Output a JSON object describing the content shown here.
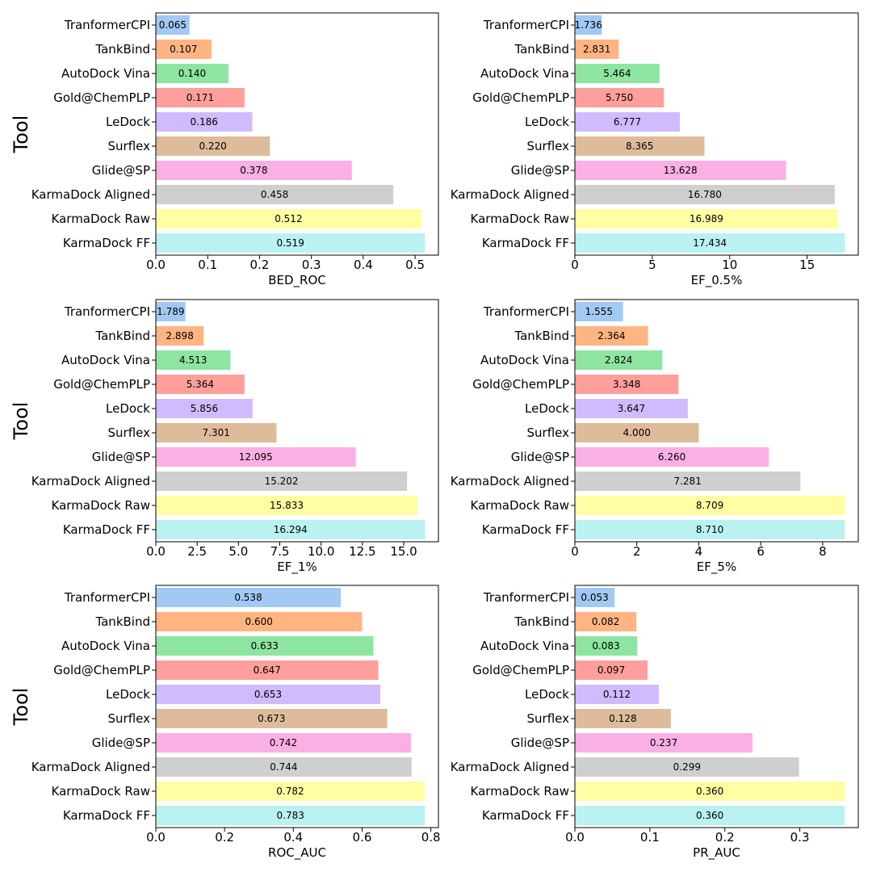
{
  "figure_ylabel": "Tool",
  "colors": [
    "#a1c9f4",
    "#ffb482",
    "#8de5a1",
    "#ff9f9b",
    "#d0bbff",
    "#debb9b",
    "#fab0e4",
    "#cfcfcf",
    "#fffea3",
    "#b9f2f0"
  ],
  "chart_data": [
    {
      "type": "bar",
      "orientation": "horizontal",
      "categories": [
        "TranformerCPI",
        "TankBind",
        "AutoDock Vina",
        "Gold@ChemPLP",
        "LeDock",
        "Surflex",
        "Glide@SP",
        "KarmaDock Aligned",
        "KarmaDock Raw",
        "KarmaDock FF"
      ],
      "values": [
        0.065,
        0.107,
        0.14,
        0.171,
        0.186,
        0.22,
        0.378,
        0.458,
        0.512,
        0.519
      ],
      "labels": [
        "0.065",
        "0.107",
        "0.140",
        "0.171",
        "0.186",
        "0.220",
        "0.378",
        "0.458",
        "0.512",
        "0.519"
      ],
      "xlabel": "BED_ROC",
      "ylabel": "Tool",
      "xlim": [
        0,
        0.545
      ],
      "xticks": [
        0.0,
        0.1,
        0.2,
        0.3,
        0.4,
        0.5
      ],
      "xtick_labels": [
        "0.0",
        "0.1",
        "0.2",
        "0.3",
        "0.4",
        "0.5"
      ]
    },
    {
      "type": "bar",
      "orientation": "horizontal",
      "categories": [
        "TranformerCPI",
        "TankBind",
        "AutoDock Vina",
        "Gold@ChemPLP",
        "LeDock",
        "Surflex",
        "Glide@SP",
        "KarmaDock Aligned",
        "KarmaDock Raw",
        "KarmaDock FF"
      ],
      "values": [
        1.736,
        2.831,
        5.464,
        5.75,
        6.777,
        8.365,
        13.628,
        16.78,
        16.989,
        17.434
      ],
      "labels": [
        "1.736",
        "2.831",
        "5.464",
        "5.750",
        "6.777",
        "8.365",
        "13.628",
        "16.780",
        "16.989",
        "17.434"
      ],
      "xlabel": "EF_0.5%",
      "ylabel": "",
      "xlim": [
        0,
        18.3
      ],
      "xticks": [
        0,
        5,
        10,
        15
      ],
      "xtick_labels": [
        "0",
        "5",
        "10",
        "15"
      ]
    },
    {
      "type": "bar",
      "orientation": "horizontal",
      "categories": [
        "TranformerCPI",
        "TankBind",
        "AutoDock Vina",
        "Gold@ChemPLP",
        "LeDock",
        "Surflex",
        "Glide@SP",
        "KarmaDock Aligned",
        "KarmaDock Raw",
        "KarmaDock FF"
      ],
      "values": [
        1.789,
        2.898,
        4.513,
        5.364,
        5.856,
        7.301,
        12.095,
        15.202,
        15.833,
        16.294
      ],
      "labels": [
        "1.789",
        "2.898",
        "4.513",
        "5.364",
        "5.856",
        "7.301",
        "12.095",
        "15.202",
        "15.833",
        "16.294"
      ],
      "xlabel": "EF_1%",
      "ylabel": "Tool",
      "xlim": [
        0,
        17.1
      ],
      "xticks": [
        0.0,
        2.5,
        5.0,
        7.5,
        10.0,
        12.5,
        15.0
      ],
      "xtick_labels": [
        "0.0",
        "2.5",
        "5.0",
        "7.5",
        "10.0",
        "12.5",
        "15.0"
      ]
    },
    {
      "type": "bar",
      "orientation": "horizontal",
      "categories": [
        "TranformerCPI",
        "TankBind",
        "AutoDock Vina",
        "Gold@ChemPLP",
        "LeDock",
        "Surflex",
        "Glide@SP",
        "KarmaDock Aligned",
        "KarmaDock Raw",
        "KarmaDock FF"
      ],
      "values": [
        1.555,
        2.364,
        2.824,
        3.348,
        3.647,
        4.0,
        6.26,
        7.281,
        8.709,
        8.71
      ],
      "labels": [
        "1.555",
        "2.364",
        "2.824",
        "3.348",
        "3.647",
        "4.000",
        "6.260",
        "7.281",
        "8.709",
        "8.710"
      ],
      "xlabel": "EF_5%",
      "ylabel": "",
      "xlim": [
        0,
        9.15
      ],
      "xticks": [
        0,
        2,
        4,
        6,
        8
      ],
      "xtick_labels": [
        "0",
        "2",
        "4",
        "6",
        "8"
      ]
    },
    {
      "type": "bar",
      "orientation": "horizontal",
      "categories": [
        "TranformerCPI",
        "TankBind",
        "AutoDock Vina",
        "Gold@ChemPLP",
        "LeDock",
        "Surflex",
        "Glide@SP",
        "KarmaDock Aligned",
        "KarmaDock Raw",
        "KarmaDock FF"
      ],
      "values": [
        0.538,
        0.6,
        0.633,
        0.647,
        0.653,
        0.673,
        0.742,
        0.744,
        0.782,
        0.783
      ],
      "labels": [
        "0.538",
        "0.600",
        "0.633",
        "0.647",
        "0.653",
        "0.673",
        "0.742",
        "0.744",
        "0.782",
        "0.783"
      ],
      "xlabel": "ROC_AUC",
      "ylabel": "Tool",
      "xlim": [
        0,
        0.822
      ],
      "xticks": [
        0.0,
        0.2,
        0.4,
        0.6,
        0.8
      ],
      "xtick_labels": [
        "0.0",
        "0.2",
        "0.4",
        "0.6",
        "0.8"
      ]
    },
    {
      "type": "bar",
      "orientation": "horizontal",
      "categories": [
        "TranformerCPI",
        "TankBind",
        "AutoDock Vina",
        "Gold@ChemPLP",
        "LeDock",
        "Surflex",
        "Glide@SP",
        "KarmaDock Aligned",
        "KarmaDock Raw",
        "KarmaDock FF"
      ],
      "values": [
        0.053,
        0.082,
        0.083,
        0.097,
        0.112,
        0.128,
        0.237,
        0.299,
        0.36,
        0.36
      ],
      "labels": [
        "0.053",
        "0.082",
        "0.083",
        "0.097",
        "0.112",
        "0.128",
        "0.237",
        "0.299",
        "0.360",
        "0.360"
      ],
      "xlabel": "PR_AUC",
      "ylabel": "",
      "xlim": [
        0,
        0.378
      ],
      "xticks": [
        0.0,
        0.1,
        0.2,
        0.3
      ],
      "xtick_labels": [
        "0.0",
        "0.1",
        "0.2",
        "0.3"
      ]
    }
  ]
}
